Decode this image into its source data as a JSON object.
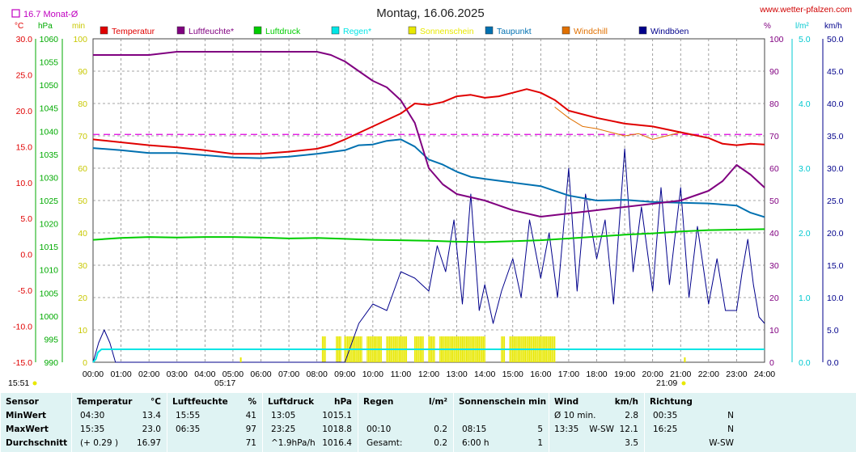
{
  "header": {
    "title": "Montag, 16.06.2025",
    "site": "www.wetter-pfalzen.com",
    "month_avg_label": "16.7 Monat-Ø",
    "unit_left_celsius": "°C",
    "unit_left_hpa": "hPa",
    "unit_left_min": "min",
    "unit_right_percent": "%",
    "unit_right_rain": "l/m²",
    "unit_right_wind": "km/h",
    "time_now": "15:51",
    "sunrise": "05:17",
    "sunset": "21:09"
  },
  "legend": [
    {
      "label": "Temperatur",
      "color": "#e00000"
    },
    {
      "label": "Luftfeuchte*",
      "color": "#800080"
    },
    {
      "label": "Luftdruck",
      "color": "#00cc00"
    },
    {
      "label": "Regen*",
      "color": "#00e5e5"
    },
    {
      "label": "Sonnenschein",
      "color": "#e8e800"
    },
    {
      "label": "Taupunkt",
      "color": "#0070b0"
    },
    {
      "label": "Windchill",
      "color": "#e07000"
    },
    {
      "label": "Windböen",
      "color": "#00008b"
    }
  ],
  "chart_data": {
    "type": "line",
    "title": "Montag, 16.06.2025",
    "x_ticks": [
      "00:00",
      "01:00",
      "02:00",
      "03:00",
      "04:00",
      "05:00",
      "06:00",
      "07:00",
      "08:00",
      "09:00",
      "10:00",
      "11:00",
      "12:00",
      "13:00",
      "14:00",
      "15:00",
      "16:00",
      "17:00",
      "18:00",
      "19:00",
      "20:00",
      "21:00",
      "22:00",
      "23:00",
      "24:00"
    ],
    "axes": {
      "temperature_c": {
        "ticks": [
          "30.0",
          "25.0",
          "20.0",
          "15.0",
          "10.0",
          "5.0",
          "0.0",
          "-5.0",
          "-10.0",
          "-15.0"
        ],
        "range": [
          -15,
          30
        ]
      },
      "pressure_hpa": {
        "ticks": [
          "1060",
          "1055",
          "1050",
          "1045",
          "1040",
          "1035",
          "1030",
          "1025",
          "1020",
          "1015",
          "1010",
          "1005",
          "1000",
          "995",
          "990"
        ],
        "range": [
          990,
          1060
        ]
      },
      "sunshine_min": {
        "ticks": [
          "100",
          "90",
          "80",
          "70",
          "60",
          "50",
          "40",
          "30",
          "20",
          "10",
          "0"
        ],
        "range": [
          0,
          100
        ]
      },
      "humidity_pct": {
        "ticks": [
          "100",
          "90",
          "80",
          "70",
          "60",
          "50",
          "40",
          "30",
          "20",
          "10",
          "0"
        ],
        "range": [
          0,
          100
        ]
      },
      "rain_lm2": {
        "ticks": [
          "5.0",
          "4.0",
          "3.0",
          "2.0",
          "1.0",
          "0.0"
        ],
        "range": [
          0,
          5
        ]
      },
      "wind_kmh": {
        "ticks": [
          "50.0",
          "45.0",
          "40.0",
          "35.0",
          "30.0",
          "25.0",
          "20.0",
          "15.0",
          "10.0",
          "5.0",
          "0.0"
        ],
        "range": [
          0,
          50
        ]
      }
    },
    "month_avg_temperature": 16.7,
    "series": [
      {
        "name": "Temperatur",
        "unit": "°C",
        "x": [
          0,
          1,
          2,
          3,
          4,
          5,
          6,
          7,
          8,
          8.5,
          9,
          10,
          11,
          11.5,
          12,
          12.5,
          13,
          13.5,
          14,
          14.5,
          15,
          15.5,
          16,
          16.5,
          17,
          18,
          19,
          20,
          21,
          22,
          22.5,
          23,
          23.5,
          24
        ],
        "y": [
          16.0,
          15.6,
          15.2,
          14.9,
          14.5,
          14.0,
          14.0,
          14.3,
          14.7,
          15.2,
          16.0,
          17.8,
          19.6,
          21.0,
          20.8,
          21.2,
          22.0,
          22.2,
          21.8,
          22.0,
          22.5,
          23.0,
          22.5,
          21.5,
          20.0,
          19.0,
          18.2,
          17.8,
          17.0,
          16.2,
          15.4,
          15.2,
          15.4,
          15.3
        ]
      },
      {
        "name": "Luftfeuchte*",
        "unit": "%",
        "x": [
          0,
          1,
          2,
          3,
          4,
          5,
          6,
          7,
          8,
          8.5,
          9,
          9.5,
          10,
          10.5,
          11,
          11.5,
          12,
          12.5,
          13,
          13.5,
          14,
          15,
          16,
          17,
          18,
          19,
          20,
          21,
          22,
          22.5,
          23,
          23.5,
          24
        ],
        "y": [
          95,
          95,
          95,
          96,
          96,
          96,
          96,
          96,
          96,
          95,
          93,
          90,
          87,
          85,
          81,
          74,
          60,
          55,
          52,
          51,
          50,
          47,
          45,
          46,
          47,
          48,
          49,
          50,
          53,
          56,
          61,
          58,
          54
        ]
      },
      {
        "name": "Luftdruck",
        "unit": "hPa",
        "x": [
          0,
          1,
          2,
          3,
          4,
          5,
          6,
          7,
          8,
          9,
          10,
          11,
          12,
          13,
          14,
          15,
          16,
          17,
          18,
          19,
          20,
          21,
          22,
          23,
          24
        ],
        "y": [
          1016.5,
          1016.9,
          1017.1,
          1017.0,
          1017.1,
          1017.1,
          1017.0,
          1016.8,
          1016.9,
          1016.7,
          1016.5,
          1016.4,
          1016.3,
          1016.1,
          1016.0,
          1016.2,
          1016.4,
          1016.8,
          1017.2,
          1017.6,
          1017.9,
          1018.3,
          1018.6,
          1018.7,
          1018.8
        ]
      },
      {
        "name": "Regen*",
        "unit": "l/m²",
        "x": [
          0,
          0.1,
          0.17,
          0.3,
          0.6,
          1,
          2,
          4,
          8,
          12,
          16,
          20,
          24
        ],
        "y": [
          0,
          0.05,
          0.15,
          0.2,
          0.2,
          0.2,
          0.2,
          0.2,
          0.2,
          0.2,
          0.2,
          0.2,
          0.2
        ]
      },
      {
        "name": "Taupunkt",
        "unit": "°C",
        "x": [
          0,
          1,
          2,
          3,
          4,
          5,
          6,
          7,
          8,
          9,
          9.5,
          10,
          10.5,
          11,
          11.5,
          12,
          12.5,
          13,
          13.5,
          14,
          15,
          16,
          17,
          18,
          19,
          20,
          21,
          22,
          23,
          23.5,
          24
        ],
        "y": [
          14.8,
          14.5,
          14.1,
          14.1,
          13.8,
          13.5,
          13.4,
          13.6,
          14.0,
          14.5,
          15.2,
          15.3,
          15.8,
          16.0,
          15.0,
          13.2,
          12.5,
          11.5,
          10.8,
          10.5,
          10.0,
          9.5,
          8.2,
          7.5,
          7.6,
          7.3,
          7.2,
          7.1,
          6.8,
          5.8,
          5.2
        ]
      },
      {
        "name": "Windchill",
        "unit": "°C",
        "x": [
          16.5,
          17,
          17.5,
          18,
          18.5,
          19,
          19.5,
          20,
          20.5,
          21
        ],
        "y": [
          20.5,
          19.0,
          17.8,
          17.5,
          17.0,
          16.5,
          16.8,
          16.0,
          16.5,
          17.0
        ]
      },
      {
        "name": "Windböen",
        "unit": "km/h",
        "x": [
          0,
          0.2,
          0.4,
          0.6,
          0.8,
          1,
          9,
          9.5,
          10,
          10.5,
          11,
          11.5,
          12,
          12.3,
          12.6,
          12.9,
          13.2,
          13.5,
          13.8,
          14,
          14.3,
          14.6,
          15,
          15.3,
          15.6,
          16,
          16.3,
          16.6,
          17,
          17.3,
          17.6,
          18,
          18.3,
          18.6,
          19,
          19.3,
          19.6,
          20,
          20.3,
          20.6,
          21,
          21.3,
          21.6,
          22,
          22.3,
          22.6,
          23,
          23.2,
          23.4,
          23.6,
          23.8,
          24
        ],
        "y": [
          0,
          3,
          5,
          3,
          0,
          0,
          0,
          6,
          9,
          8,
          14,
          13,
          11,
          18,
          14,
          22,
          9,
          26,
          8,
          12,
          6,
          11,
          16,
          10,
          22,
          13,
          20,
          10,
          30,
          11,
          26,
          16,
          22,
          9,
          33,
          14,
          24,
          11,
          27,
          12,
          27,
          10,
          21,
          9,
          16,
          8,
          8,
          14,
          19,
          12,
          7,
          6
        ]
      }
    ],
    "sunshine_intervals": [
      [
        8.2,
        8.3
      ],
      [
        8.7,
        8.85
      ],
      [
        9.0,
        9.6
      ],
      [
        9.8,
        10.3
      ],
      [
        10.5,
        11.2
      ],
      [
        11.5,
        11.8
      ],
      [
        12.0,
        12.2
      ],
      [
        12.4,
        14.0
      ],
      [
        14.6,
        14.7
      ],
      [
        14.9,
        16.5
      ]
    ]
  },
  "table": {
    "headers": [
      {
        "name": "Sensor"
      },
      {
        "name": "Temperatur",
        "unit": "°C"
      },
      {
        "name": "Luftfeuchte",
        "unit": "%"
      },
      {
        "name": "Luftdruck",
        "unit": "hPa"
      },
      {
        "name": "Regen",
        "unit": "l/m²"
      },
      {
        "name": "Sonnenschein min"
      },
      {
        "name": "Wind",
        "unit": "km/h"
      },
      {
        "name": "Richtung"
      }
    ],
    "rows": [
      {
        "label": "MinWert",
        "cells": [
          [
            "04:30",
            "13.4"
          ],
          [
            "15:55",
            "41"
          ],
          [
            "13:05",
            "1015.1"
          ],
          [
            "",
            ""
          ],
          [
            "",
            ""
          ],
          [
            "Ø 10 min.",
            "",
            "2.8"
          ],
          [
            "00:35",
            "N"
          ]
        ]
      },
      {
        "label": "MaxWert",
        "cells": [
          [
            "15:35",
            "23.0"
          ],
          [
            "06:35",
            "97"
          ],
          [
            "23:25",
            "1018.8"
          ],
          [
            "00:10",
            "0.2"
          ],
          [
            "08:15",
            "5"
          ],
          [
            "13:35",
            "W-SW",
            "12.1"
          ],
          [
            "16:25",
            "N"
          ]
        ]
      },
      {
        "label": "Durchschnitt",
        "cells": [
          [
            "(+ 0.29 )",
            "16.97"
          ],
          [
            "",
            "71"
          ],
          [
            "^1.9hPa/h",
            "1016.4"
          ],
          [
            "Gesamt:",
            "0.2"
          ],
          [
            "6:00 h",
            "1"
          ],
          [
            "",
            "",
            "3.5"
          ],
          [
            "",
            "W-SW"
          ]
        ]
      }
    ]
  }
}
